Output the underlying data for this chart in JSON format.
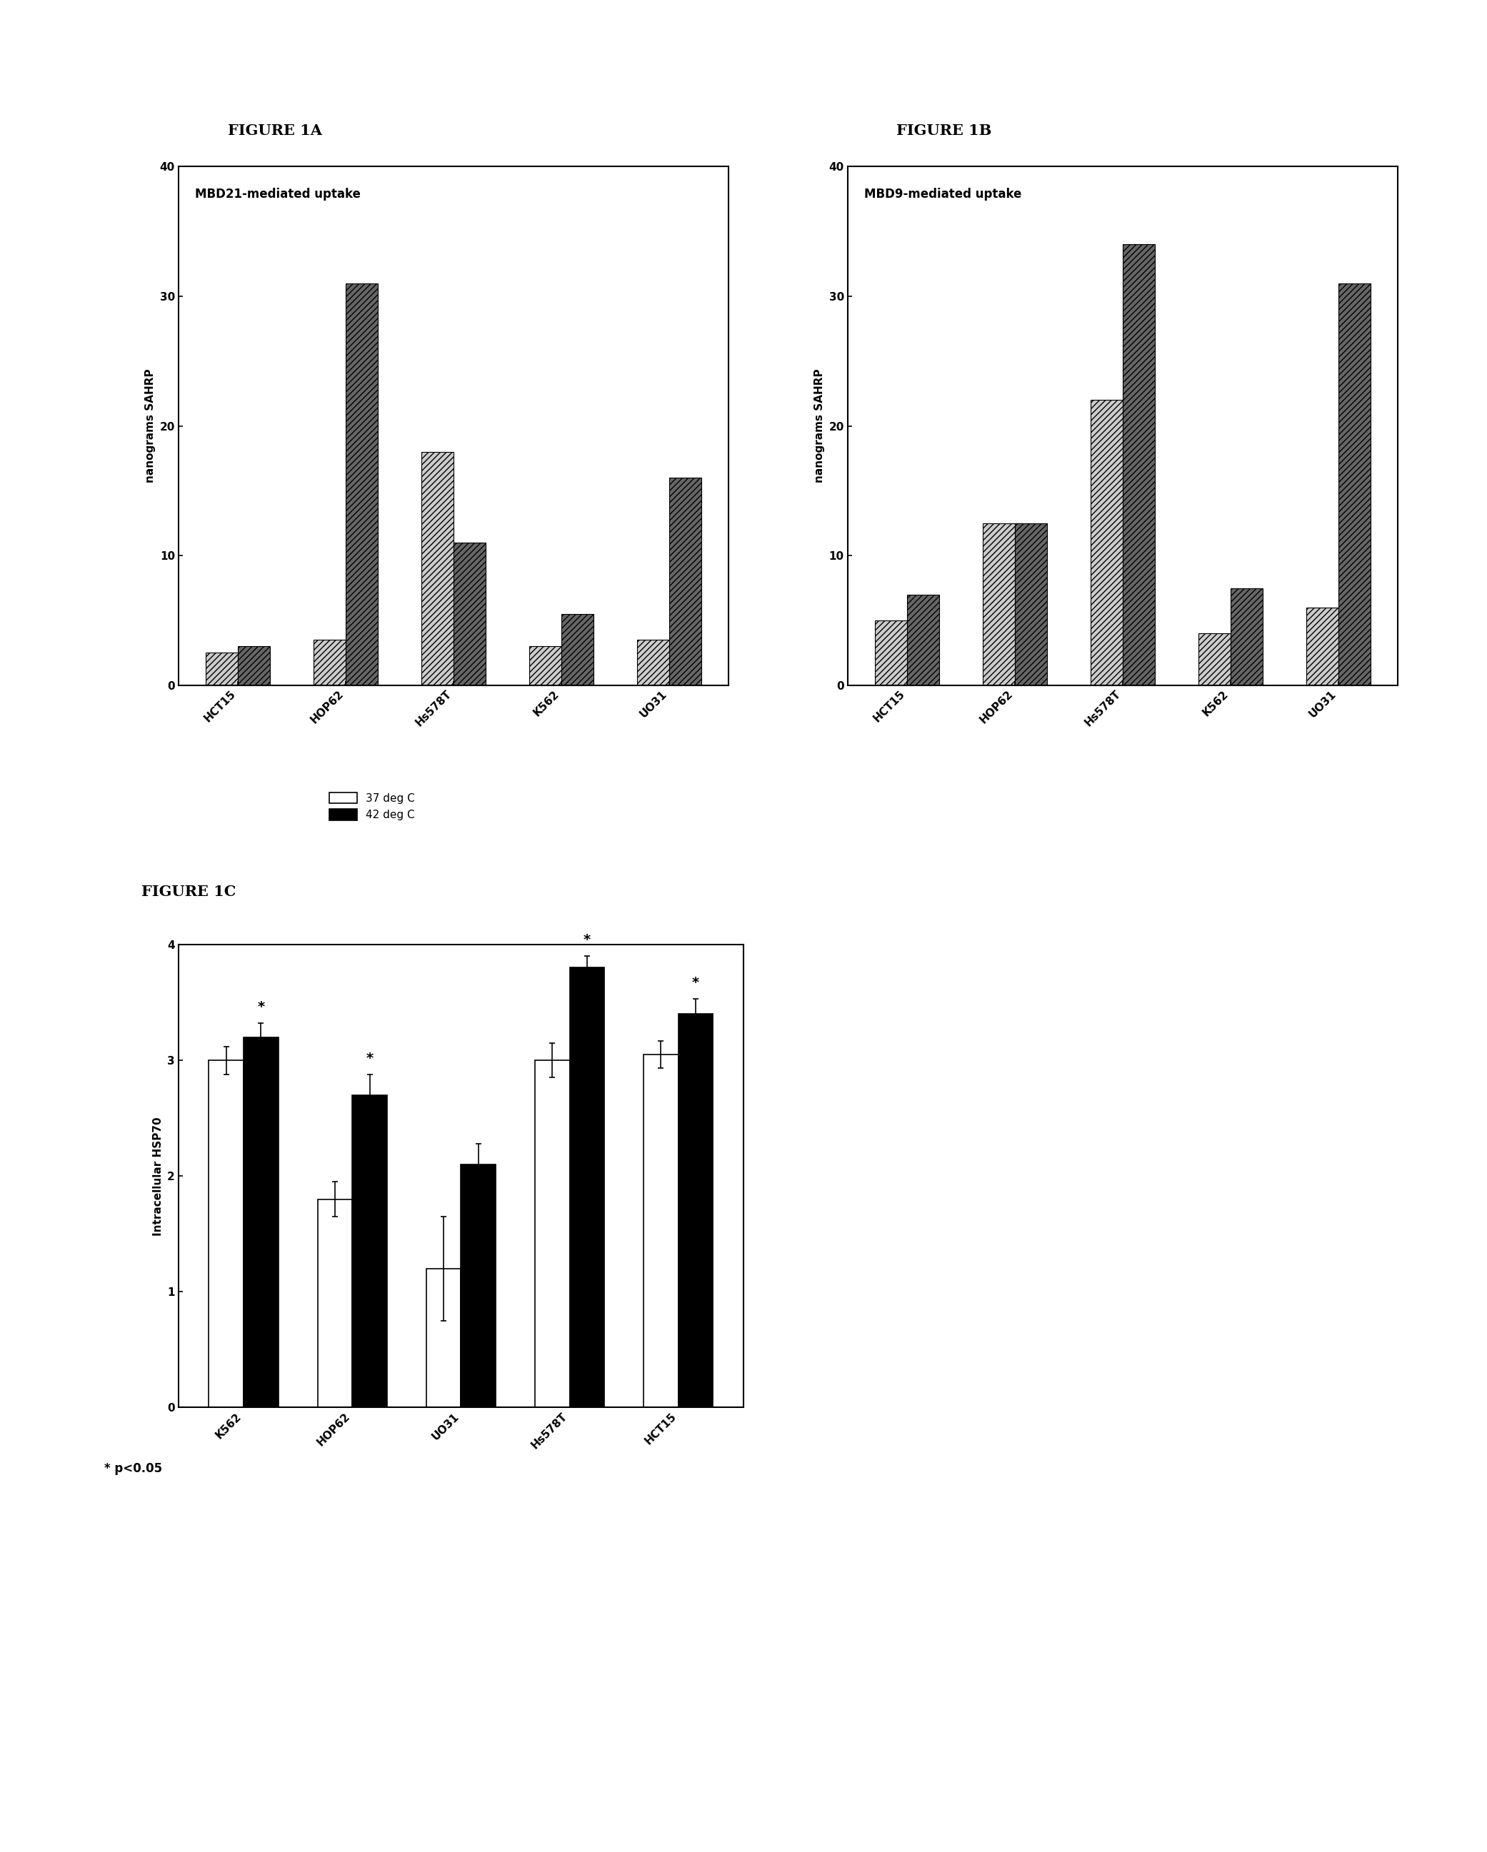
{
  "fig1a_title": "FIGURE 1A",
  "fig1b_title": "FIGURE 1B",
  "fig1c_title": "FIGURE 1C",
  "fig1a_label": "MBD21-mediated uptake",
  "fig1b_label": "MBD9-mediated uptake",
  "fig1a_categories": [
    "HCT15",
    "HOP62",
    "Hs578T",
    "K562",
    "UO31"
  ],
  "fig1b_categories": [
    "HCT15",
    "HOP62",
    "Hs578T",
    "K562",
    "UO31"
  ],
  "fig1c_categories": [
    "K562",
    "HOP62",
    "UO31",
    "Hs578T",
    "HCT15"
  ],
  "fig1a_bar1": [
    2.5,
    3.5,
    18.0,
    3.0,
    3.5
  ],
  "fig1a_bar2": [
    3.0,
    31.0,
    11.0,
    5.5,
    16.0
  ],
  "fig1b_bar1": [
    5.0,
    12.5,
    22.0,
    4.0,
    6.0
  ],
  "fig1b_bar2": [
    7.0,
    12.5,
    34.0,
    7.5,
    31.0
  ],
  "fig1c_bar1": [
    3.0,
    1.8,
    1.2,
    3.0,
    3.05
  ],
  "fig1c_bar2": [
    3.2,
    2.7,
    2.1,
    3.8,
    3.4
  ],
  "fig1c_err1": [
    0.12,
    0.15,
    0.45,
    0.15,
    0.12
  ],
  "fig1c_err2": [
    0.12,
    0.18,
    0.18,
    0.1,
    0.13
  ],
  "fig1a_ylim": [
    0,
    40
  ],
  "fig1b_ylim": [
    0,
    40
  ],
  "fig1c_ylim": [
    0,
    4
  ],
  "ylabel_ab": "nanograms SAHRP",
  "ylabel_c": "Intracellular HSP70",
  "legend_c_37": "37 deg C",
  "legend_c_42": "42 deg C",
  "annotation": "* p<0.05",
  "fig1c_stars_37": [
    false,
    false,
    false,
    false,
    false
  ],
  "fig1c_stars_42": [
    true,
    true,
    false,
    true,
    true
  ]
}
